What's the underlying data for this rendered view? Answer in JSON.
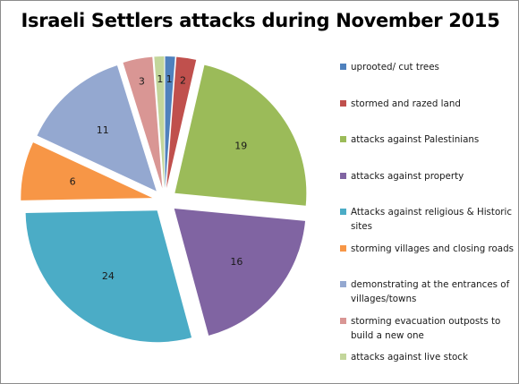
{
  "chart_data": {
    "type": "pie",
    "title": "Israeli Settlers attacks during November 2015",
    "categories": [
      "uprooted/ cut trees",
      "stormed and razed land",
      "attacks against Palestinians",
      "attacks against property",
      "Attacks against religious & Historic sites",
      "storming villages and closing roads",
      "demonstrating at the entrances of villages/towns",
      "storming evacuation outposts to build a new one",
      "attacks against live stock"
    ],
    "values": [
      1,
      2,
      19,
      16,
      24,
      6,
      11,
      3,
      1
    ],
    "data_labels": [
      "1",
      "2",
      "19",
      "16",
      "24",
      "6",
      "11",
      "3",
      "1"
    ],
    "colors": [
      "#4f81bd",
      "#c0504d",
      "#9bbb59",
      "#8064a2",
      "#4bacc6",
      "#f79646",
      "#94a8d0",
      "#d99694",
      "#c3d69b"
    ],
    "exploded": true,
    "start_angle": "12 o'clock",
    "direction": "clockwise",
    "legend_position": "right"
  }
}
